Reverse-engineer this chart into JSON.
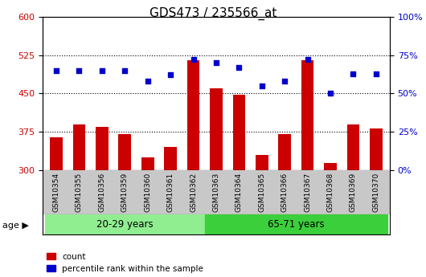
{
  "title": "GDS473 / 235566_at",
  "samples": [
    "GSM10354",
    "GSM10355",
    "GSM10356",
    "GSM10359",
    "GSM10360",
    "GSM10361",
    "GSM10362",
    "GSM10363",
    "GSM10364",
    "GSM10365",
    "GSM10366",
    "GSM10367",
    "GSM10368",
    "GSM10369",
    "GSM10370"
  ],
  "counts": [
    365,
    390,
    385,
    370,
    325,
    345,
    515,
    460,
    448,
    330,
    370,
    515,
    315,
    390,
    382
  ],
  "percentile_ranks": [
    65,
    65,
    65,
    65,
    58,
    62,
    72,
    70,
    67,
    55,
    58,
    72,
    50,
    63,
    63
  ],
  "groups": [
    {
      "label": "20-29 years",
      "start": 0,
      "end": 7,
      "color": "#90EE90"
    },
    {
      "label": "65-71 years",
      "start": 7,
      "end": 15,
      "color": "#3CCF3C"
    }
  ],
  "ylim_left": [
    300,
    600
  ],
  "ylim_right": [
    0,
    100
  ],
  "yticks_left": [
    300,
    375,
    450,
    525,
    600
  ],
  "yticks_right": [
    0,
    25,
    50,
    75,
    100
  ],
  "bar_color": "#cc0000",
  "dot_color": "#0000cc",
  "bar_bottom": 300,
  "group_label_fontsize": 8.5,
  "tick_label_fontsize": 6.5,
  "title_fontsize": 11,
  "legend_fontsize": 7.5,
  "age_label": "age",
  "legend_count": "count",
  "legend_percentile": "percentile rank within the sample",
  "tick_color_left": "#cc0000",
  "tick_color_right": "#0000cc",
  "gray_band_color": "#c8c8c8",
  "dotted_grid_vals": [
    375,
    450,
    525
  ]
}
